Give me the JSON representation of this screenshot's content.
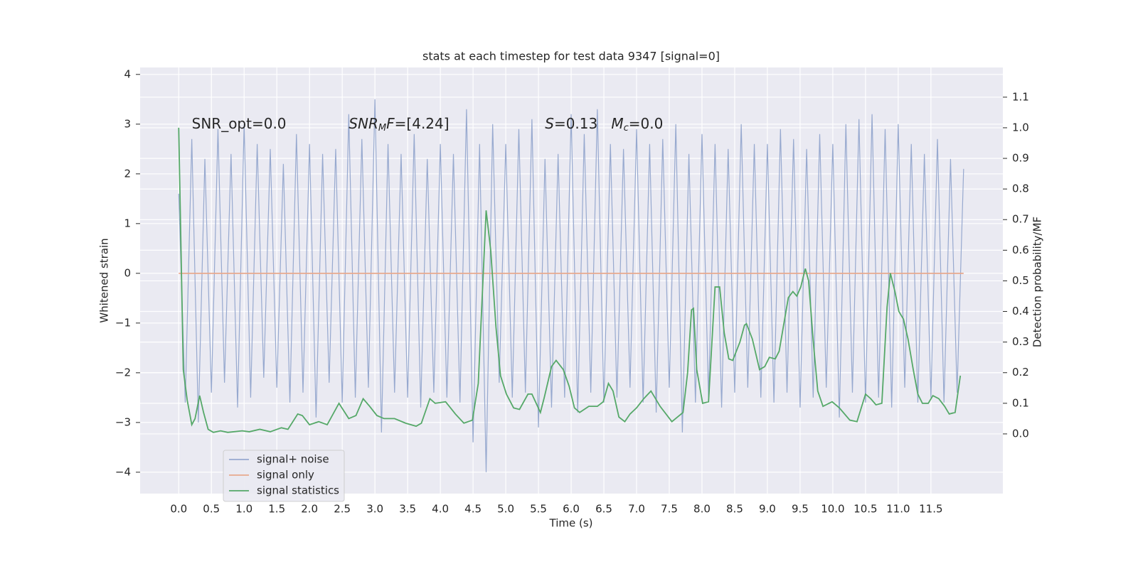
{
  "chart_data": {
    "type": "line",
    "title": "stats at each timestep for test data 9347 [signal=0]",
    "xlabel": "Time (s)",
    "ylabel": "Whitened strain",
    "y2label": "Detection probability/MF",
    "xlim": [
      -0.59,
      12.6
    ],
    "ylim": [
      -4.43,
      4.14
    ],
    "y2lim": [
      -0.195,
      1.197
    ],
    "xticks": [
      {
        "value": 0,
        "label": "0.0"
      },
      {
        "value": 0.5,
        "label": "0.5"
      },
      {
        "value": 1,
        "label": "1.0"
      },
      {
        "value": 1.5,
        "label": "1.5"
      },
      {
        "value": 2,
        "label": "2.0"
      },
      {
        "value": 2.5,
        "label": "2.5"
      },
      {
        "value": 3,
        "label": "3.0"
      },
      {
        "value": 3.5,
        "label": "3.5"
      },
      {
        "value": 4,
        "label": "4.0"
      },
      {
        "value": 4.5,
        "label": "4.5"
      },
      {
        "value": 5,
        "label": "5.0"
      },
      {
        "value": 5.5,
        "label": "5.5"
      },
      {
        "value": 6,
        "label": "6.0"
      },
      {
        "value": 6.5,
        "label": "6.5"
      },
      {
        "value": 7,
        "label": "7.0"
      },
      {
        "value": 7.5,
        "label": "7.5"
      },
      {
        "value": 8,
        "label": "8.0"
      },
      {
        "value": 8.5,
        "label": "8.5"
      },
      {
        "value": 9,
        "label": "9.0"
      },
      {
        "value": 9.5,
        "label": "9.5"
      },
      {
        "value": 10,
        "label": "10.0"
      },
      {
        "value": 10.5,
        "label": "10.5"
      },
      {
        "value": 11,
        "label": "11.0"
      },
      {
        "value": 11.5,
        "label": "11.5"
      }
    ],
    "yticks": [
      {
        "value": -4,
        "label": "−4"
      },
      {
        "value": -3,
        "label": "−3"
      },
      {
        "value": -2,
        "label": "−2"
      },
      {
        "value": -1,
        "label": "−1"
      },
      0,
      1,
      2,
      3,
      4
    ],
    "y2ticks": [
      {
        "value": 0,
        "label": "0.0"
      },
      {
        "value": 0.1,
        "label": "0.1"
      },
      {
        "value": 0.2,
        "label": "0.2"
      },
      {
        "value": 0.3,
        "label": "0.3"
      },
      {
        "value": 0.4,
        "label": "0.4"
      },
      {
        "value": 0.5,
        "label": "0.5"
      },
      {
        "value": 0.6,
        "label": "0.6"
      },
      {
        "value": 0.7,
        "label": "0.7"
      },
      {
        "value": 0.8,
        "label": "0.8"
      },
      {
        "value": 0.9,
        "label": "0.9"
      },
      {
        "value": 1.0,
        "label": "1.0"
      },
      {
        "value": 1.1,
        "label": "1.1"
      }
    ],
    "grid": true,
    "legend": "lower left",
    "annotations": [
      [
        {
          "text": "SNR_opt=0.0"
        }
      ],
      [
        {
          "text": "SNR",
          "italic": true
        },
        {
          "text": "M",
          "italic": true,
          "sub": true
        },
        {
          "text": "F",
          "italic": true
        },
        {
          "text": "=[4.24]"
        }
      ],
      [
        {
          "text": "S",
          "italic": true
        },
        {
          "text": "=0.13   "
        },
        {
          "text": "M",
          "italic": true
        },
        {
          "text": "c",
          "italic": true,
          "sub": true
        },
        {
          "text": "=0.0"
        }
      ]
    ],
    "series": [
      {
        "name": "signal+ noise",
        "color": "#97a9cf",
        "x": [
          0,
          0.1,
          0.2,
          0.3,
          0.4,
          0.5,
          0.6,
          0.7,
          0.8,
          0.9,
          1,
          1.1,
          1.2,
          1.3,
          1.4,
          1.5,
          1.6,
          1.7,
          1.8,
          1.9,
          2,
          2.1,
          2.2,
          2.3,
          2.4,
          2.5,
          2.6,
          2.7,
          2.8,
          2.9,
          3,
          3.1,
          3.2,
          3.3,
          3.4,
          3.5,
          3.6,
          3.7,
          3.8,
          3.9,
          4,
          4.1,
          4.2,
          4.3,
          4.4,
          4.5,
          4.6,
          4.7,
          4.8,
          4.9,
          5,
          5.1,
          5.2,
          5.3,
          5.4,
          5.5,
          5.6,
          5.7,
          5.8,
          5.9,
          6,
          6.1,
          6.2,
          6.3,
          6.4,
          6.5,
          6.6,
          6.7,
          6.8,
          6.9,
          7,
          7.1,
          7.2,
          7.3,
          7.4,
          7.5,
          7.6,
          7.7,
          7.8,
          7.9,
          8,
          8.1,
          8.2,
          8.3,
          8.4,
          8.5,
          8.6,
          8.7,
          8.8,
          8.9,
          9,
          9.1,
          9.2,
          9.3,
          9.4,
          9.5,
          9.6,
          9.7,
          9.8,
          9.9,
          10,
          10.1,
          10.2,
          10.3,
          10.4,
          10.5,
          10.6,
          10.7,
          10.8,
          10.9,
          11,
          11.1,
          11.2,
          11.3,
          11.4,
          11.5,
          11.6,
          11.7,
          11.8,
          11.9,
          12
        ],
        "values": [
          1.6,
          -2.6,
          2.7,
          -3.0,
          2.3,
          -2.4,
          2.9,
          -2.2,
          2.4,
          -2.7,
          3.0,
          -2.5,
          2.6,
          -2.1,
          2.5,
          -2.3,
          2.2,
          -2.6,
          2.8,
          -2.4,
          2.6,
          -2.9,
          2.4,
          -2.2,
          2.5,
          -2.6,
          3.2,
          -2.5,
          2.7,
          -2.3,
          3.5,
          -3.2,
          2.6,
          -2.4,
          2.4,
          -2.5,
          2.8,
          -2.7,
          2.3,
          -2.4,
          2.6,
          -2.5,
          2.4,
          -2.6,
          3.3,
          -3.4,
          2.6,
          -4.0,
          3.0,
          -2.2,
          2.6,
          -2.5,
          2.9,
          -2.4,
          3.1,
          -3.1,
          2.3,
          -2.7,
          2.4,
          -2.5,
          3.2,
          -2.8,
          2.8,
          -2.4,
          3.3,
          -2.6,
          2.6,
          -2.5,
          2.5,
          -2.3,
          2.9,
          -2.6,
          2.6,
          -2.8,
          2.7,
          -2.3,
          3.0,
          -3.2,
          2.4,
          -2.6,
          2.8,
          -2.5,
          2.6,
          -2.7,
          2.5,
          -2.4,
          3.0,
          -2.3,
          2.6,
          -2.5,
          2.6,
          -2.6,
          2.9,
          -2.4,
          2.7,
          -2.7,
          2.5,
          -2.5,
          2.8,
          -2.3,
          2.6,
          -2.9,
          3.0,
          -2.4,
          3.1,
          -2.6,
          3.2,
          -2.5,
          2.9,
          -2.7,
          3.0,
          -2.3,
          2.6,
          -2.6,
          2.4,
          -2.5,
          2.7,
          -2.6,
          2.3,
          -2.4,
          2.1
        ]
      },
      {
        "name": "signal only",
        "color": "#e8a98d",
        "x": [
          0,
          12
        ],
        "values": [
          0,
          0
        ]
      },
      {
        "name": "signal statistics",
        "color": "#55a868",
        "axis": "y2",
        "x": [
          0,
          0.07,
          0.13,
          0.2,
          0.25,
          0.32,
          0.38,
          0.45,
          0.53,
          0.64,
          0.75,
          0.97,
          1.08,
          1.24,
          1.4,
          1.57,
          1.67,
          1.82,
          1.89,
          2.0,
          2.14,
          2.27,
          2.45,
          2.6,
          2.71,
          2.82,
          2.92,
          3.03,
          3.14,
          3.3,
          3.47,
          3.63,
          3.71,
          3.84,
          3.92,
          4.08,
          4.23,
          4.36,
          4.49,
          4.58,
          4.7,
          4.77,
          4.85,
          4.92,
          5.01,
          5.12,
          5.21,
          5.34,
          5.4,
          5.53,
          5.59,
          5.7,
          5.77,
          5.88,
          5.97,
          6.05,
          6.13,
          6.27,
          6.4,
          6.49,
          6.57,
          6.64,
          6.73,
          6.82,
          6.9,
          7.0,
          7.11,
          7.22,
          7.36,
          7.54,
          7.71,
          7.78,
          7.84,
          7.87,
          7.92,
          8.01,
          8.1,
          8.2,
          8.27,
          8.34,
          8.41,
          8.47,
          8.58,
          8.65,
          8.68,
          8.77,
          8.88,
          8.96,
          9.03,
          9.12,
          9.18,
          9.32,
          9.39,
          9.45,
          9.51,
          9.58,
          9.63,
          9.7,
          9.77,
          9.85,
          9.99,
          10.1,
          10.26,
          10.37,
          10.5,
          10.58,
          10.66,
          10.75,
          10.83,
          10.88,
          10.95,
          11.01,
          11.08,
          11.15,
          11.23,
          11.3,
          11.37,
          11.46,
          11.53,
          11.62,
          11.71,
          11.78,
          11.87,
          11.95
        ],
        "values": [
          1.0,
          0.21,
          0.11,
          0.03,
          0.05,
          0.125,
          0.07,
          0.015,
          0.005,
          0.01,
          0.005,
          0.01,
          0.007,
          0.015,
          0.007,
          0.02,
          0.015,
          0.065,
          0.06,
          0.03,
          0.04,
          0.03,
          0.1,
          0.05,
          0.06,
          0.115,
          0.09,
          0.06,
          0.05,
          0.05,
          0.035,
          0.025,
          0.035,
          0.115,
          0.1,
          0.105,
          0.065,
          0.035,
          0.045,
          0.165,
          0.73,
          0.6,
          0.35,
          0.19,
          0.13,
          0.085,
          0.08,
          0.13,
          0.13,
          0.07,
          0.12,
          0.22,
          0.24,
          0.21,
          0.155,
          0.085,
          0.07,
          0.09,
          0.09,
          0.105,
          0.165,
          0.14,
          0.055,
          0.04,
          0.065,
          0.085,
          0.115,
          0.14,
          0.09,
          0.04,
          0.07,
          0.2,
          0.405,
          0.41,
          0.21,
          0.1,
          0.105,
          0.48,
          0.48,
          0.33,
          0.245,
          0.24,
          0.3,
          0.355,
          0.36,
          0.31,
          0.21,
          0.22,
          0.25,
          0.245,
          0.27,
          0.445,
          0.465,
          0.45,
          0.48,
          0.54,
          0.5,
          0.305,
          0.14,
          0.09,
          0.105,
          0.085,
          0.045,
          0.04,
          0.13,
          0.115,
          0.095,
          0.1,
          0.415,
          0.525,
          0.465,
          0.4,
          0.375,
          0.31,
          0.21,
          0.13,
          0.1,
          0.1,
          0.125,
          0.115,
          0.09,
          0.065,
          0.07,
          0.19
        ]
      }
    ]
  }
}
